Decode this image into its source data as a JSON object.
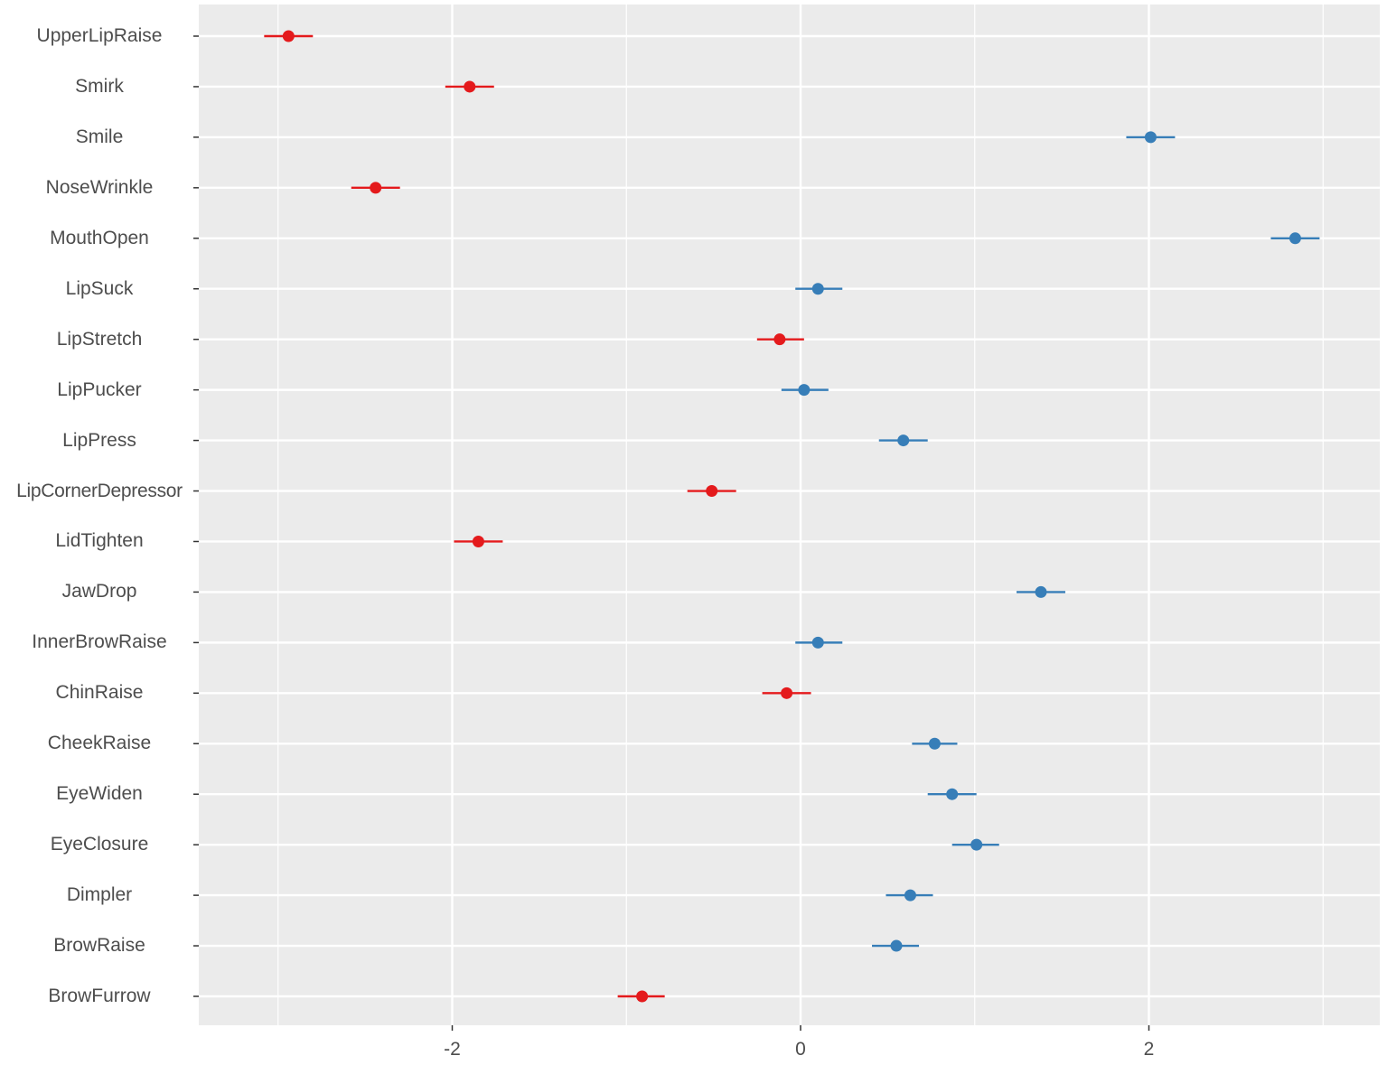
{
  "chart_data": {
    "type": "scatter",
    "subtype": "point-range / coefficient plot",
    "title": "",
    "xlabel": "",
    "ylabel": "",
    "xlim": [
      -3.45,
      3.3
    ],
    "xticks": [
      -2,
      0,
      2
    ],
    "xtick_labels": [
      "-2",
      "0",
      "2"
    ],
    "grid": true,
    "legend": null,
    "colors": {
      "negative": "#e41a1c",
      "positive": "#377eb8",
      "panel_bg": "#ebebeb",
      "grid": "#ffffff"
    },
    "categories": [
      "UpperLipRaise",
      "Smirk",
      "Smile",
      "NoseWrinkle",
      "MouthOpen",
      "LipSuck",
      "LipStretch",
      "LipPucker",
      "LipPress",
      "LipCornerDepressor",
      "LidTighten",
      "JawDrop",
      "InnerBrowRaise",
      "ChinRaise",
      "CheekRaise",
      "EyeWiden",
      "EyeClosure",
      "Dimpler",
      "BrowRaise",
      "BrowFurrow"
    ],
    "points": [
      {
        "label": "UpperLipRaise",
        "value": -2.94,
        "low": -3.08,
        "high": -2.8,
        "sign": "negative"
      },
      {
        "label": "Smirk",
        "value": -1.9,
        "low": -2.04,
        "high": -1.76,
        "sign": "negative"
      },
      {
        "label": "Smile",
        "value": 2.01,
        "low": 1.87,
        "high": 2.15,
        "sign": "positive"
      },
      {
        "label": "NoseWrinkle",
        "value": -2.44,
        "low": -2.58,
        "high": -2.3,
        "sign": "negative"
      },
      {
        "label": "MouthOpen",
        "value": 2.84,
        "low": 2.7,
        "high": 2.98,
        "sign": "positive"
      },
      {
        "label": "LipSuck",
        "value": 0.1,
        "low": -0.03,
        "high": 0.24,
        "sign": "positive"
      },
      {
        "label": "LipStretch",
        "value": -0.12,
        "low": -0.25,
        "high": 0.02,
        "sign": "negative"
      },
      {
        "label": "LipPucker",
        "value": 0.02,
        "low": -0.11,
        "high": 0.16,
        "sign": "positive"
      },
      {
        "label": "LipPress",
        "value": 0.59,
        "low": 0.45,
        "high": 0.73,
        "sign": "positive"
      },
      {
        "label": "LipCornerDepressor",
        "value": -0.51,
        "low": -0.65,
        "high": -0.37,
        "sign": "negative"
      },
      {
        "label": "LidTighten",
        "value": -1.85,
        "low": -1.99,
        "high": -1.71,
        "sign": "negative"
      },
      {
        "label": "JawDrop",
        "value": 1.38,
        "low": 1.24,
        "high": 1.52,
        "sign": "positive"
      },
      {
        "label": "InnerBrowRaise",
        "value": 0.1,
        "low": -0.03,
        "high": 0.24,
        "sign": "positive"
      },
      {
        "label": "ChinRaise",
        "value": -0.08,
        "low": -0.22,
        "high": 0.06,
        "sign": "negative"
      },
      {
        "label": "CheekRaise",
        "value": 0.77,
        "low": 0.64,
        "high": 0.9,
        "sign": "positive"
      },
      {
        "label": "EyeWiden",
        "value": 0.87,
        "low": 0.73,
        "high": 1.01,
        "sign": "positive"
      },
      {
        "label": "EyeClosure",
        "value": 1.01,
        "low": 0.87,
        "high": 1.14,
        "sign": "positive"
      },
      {
        "label": "Dimpler",
        "value": 0.63,
        "low": 0.49,
        "high": 0.76,
        "sign": "positive"
      },
      {
        "label": "BrowRaise",
        "value": 0.55,
        "low": 0.41,
        "high": 0.68,
        "sign": "positive"
      },
      {
        "label": "BrowFurrow",
        "value": -0.91,
        "low": -1.05,
        "high": -0.78,
        "sign": "negative"
      }
    ]
  }
}
